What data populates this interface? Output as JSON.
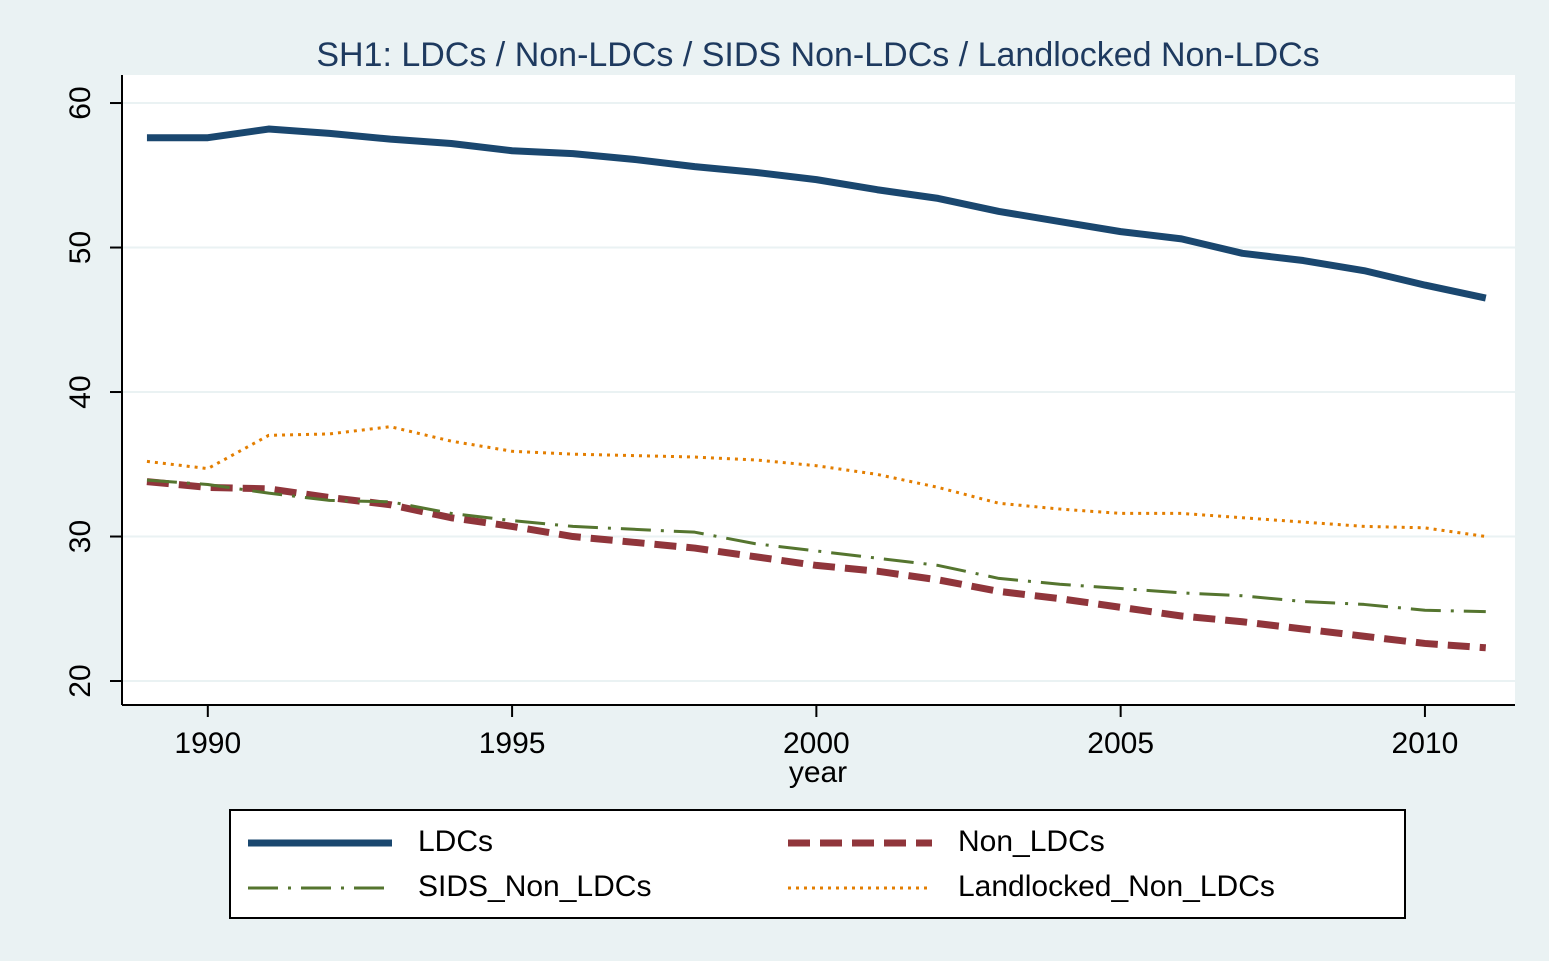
{
  "chart_data": {
    "type": "line",
    "title": "SH1: LDCs / Non-LDCs / SIDS Non-LDCs / Landlocked Non-LDCs",
    "x_label": "year",
    "x": [
      1989,
      1990,
      1991,
      1992,
      1993,
      1994,
      1995,
      1996,
      1997,
      1998,
      1999,
      2000,
      2001,
      2002,
      2003,
      2004,
      2005,
      2006,
      2007,
      2008,
      2009,
      2010,
      2011
    ],
    "series": [
      {
        "name": "LDCs",
        "color": "#1a476f",
        "values": [
          57.6,
          57.6,
          58.2,
          57.9,
          57.5,
          57.2,
          56.7,
          56.5,
          56.1,
          55.6,
          55.2,
          54.7,
          54.0,
          53.4,
          52.5,
          51.8,
          51.1,
          50.6,
          49.6,
          49.1,
          48.4,
          47.4,
          46.5
        ]
      },
      {
        "name": "Non_LDCs",
        "color": "#90353b",
        "values": [
          33.8,
          33.4,
          33.3,
          32.7,
          32.2,
          31.3,
          30.7,
          30.0,
          29.6,
          29.2,
          28.6,
          28.0,
          27.6,
          27.0,
          26.2,
          25.7,
          25.1,
          24.5,
          24.1,
          23.6,
          23.1,
          22.6,
          22.3
        ]
      },
      {
        "name": "SIDS_Non_LDCs",
        "color": "#55752f",
        "values": [
          33.9,
          33.6,
          33.0,
          32.5,
          32.4,
          31.6,
          31.1,
          30.7,
          30.5,
          30.3,
          29.5,
          29.0,
          28.5,
          28.0,
          27.1,
          26.7,
          26.4,
          26.1,
          25.9,
          25.5,
          25.3,
          24.9,
          24.8
        ]
      },
      {
        "name": "Landlocked_Non_LDCs",
        "color": "#e37e00",
        "values": [
          35.2,
          34.7,
          37.0,
          37.1,
          37.6,
          36.6,
          35.9,
          35.7,
          35.6,
          35.5,
          35.3,
          34.9,
          34.3,
          33.4,
          32.3,
          31.9,
          31.6,
          31.6,
          31.3,
          31.0,
          30.7,
          30.6,
          30.0
        ]
      }
    ],
    "xlim": [
      1988.59,
      2011.48
    ],
    "xticks": [
      1990,
      1995,
      2000,
      2005,
      2010
    ],
    "ylim": [
      18.34,
      61.94
    ],
    "yticks": [
      20,
      30,
      40,
      50,
      60
    ],
    "grid": true,
    "legend": "bottom"
  }
}
